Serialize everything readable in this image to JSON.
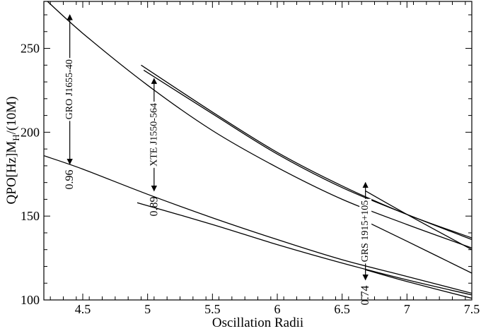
{
  "chart_data": {
    "type": "line",
    "title": "",
    "xlabel": "Oscillation Radii",
    "ylabel_main": "QPO[Hz]M",
    "ylabel_sub": "H",
    "ylabel_tail": "/(10M)",
    "xlim": [
      4.2,
      7.5
    ],
    "ylim": [
      100,
      278
    ],
    "xticks": [
      4.5,
      5,
      5.5,
      6,
      6.5,
      7,
      7.5
    ],
    "xtick_labels": [
      "4.5",
      "5",
      "5.5",
      "6",
      "6.5",
      "7",
      "7.5"
    ],
    "yticks": [
      100,
      150,
      200,
      250
    ],
    "ytick_labels": [
      "100",
      "150",
      "200",
      "250"
    ],
    "grid": false,
    "series": [
      {
        "x": [
          4.2,
          4.5,
          5.0,
          5.5,
          6.0,
          6.5,
          7.0,
          7.5
        ],
        "values": [
          280,
          259,
          228,
          201,
          179,
          160,
          145,
          131
        ]
      },
      {
        "x": [
          4.2,
          4.5,
          5.0,
          5.5,
          6.0,
          6.5,
          7.0,
          7.5
        ],
        "values": [
          186,
          178,
          163,
          149,
          136,
          124,
          114,
          104
        ]
      },
      {
        "x": [
          4.95,
          5.5,
          6.0,
          6.5,
          7.0,
          7.5
        ],
        "values": [
          240,
          212,
          188,
          168,
          151,
          137
        ]
      },
      {
        "x": [
          4.97,
          5.5,
          6.0,
          6.5,
          7.0,
          7.5
        ],
        "values": [
          237,
          211,
          187,
          167,
          151,
          136
        ]
      },
      {
        "x": [
          4.92,
          5.5,
          6.0,
          6.5,
          7.0,
          7.5
        ],
        "values": [
          158,
          145,
          133,
          122,
          112,
          103
        ]
      },
      {
        "x": [
          6.68,
          7.0,
          7.5
        ],
        "values": [
          147,
          135,
          116
        ]
      },
      {
        "x": [
          6.68,
          7.0,
          7.5
        ],
        "values": [
          165,
          151,
          130
        ]
      },
      {
        "x": [
          6.68,
          7.0,
          7.5
        ],
        "values": [
          118,
          111,
          101
        ]
      }
    ],
    "annotations": [
      {
        "label": "GRO J1655-40",
        "value_label": "0.96",
        "x": 4.4,
        "y_top": 270,
        "y_bottom": 181
      },
      {
        "label": "XTE J1550-564",
        "value_label": "0.89",
        "x": 5.05,
        "y_top": 232,
        "y_bottom": 165
      },
      {
        "label": "GRS 1915+105",
        "value_label": "0.74",
        "x": 6.68,
        "y_top": 170,
        "y_bottom": 112
      }
    ]
  }
}
